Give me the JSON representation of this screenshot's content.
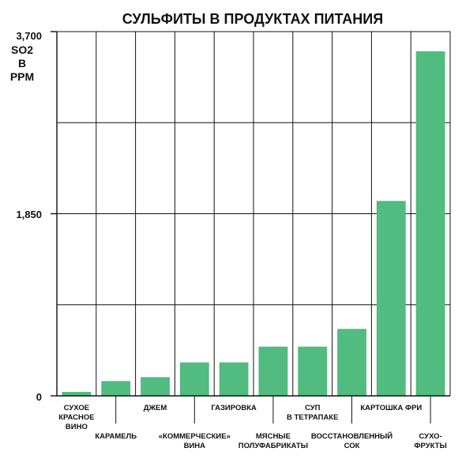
{
  "chart_data": {
    "type": "bar",
    "title": "СУЛЬФИТЫ В ПРОДУКТАХ ПИТАНИЯ",
    "ylabel_lines": [
      "SO2",
      "B",
      "PPM"
    ],
    "ylim": [
      0,
      3700
    ],
    "yticks": [
      "0",
      "1,850",
      "3,700"
    ],
    "grid": true,
    "bar_color": "#52bb80",
    "categories": [
      "СУХОЕ КРАСНОЕ ВИНО",
      "КАРАМЕЛЬ",
      "ДЖЕМ",
      "«КОММЕРЧЕСКИЕ» ВИНА",
      "ГАЗИРОВКА",
      "МЯСНЫЕ ПОЛУФАБРИКАТЫ",
      "СУП В ТЕТРАПАКЕ",
      "ВОССТАНОВЛЕННЫЙ СОК",
      "КАРТОШКА ФРИ",
      "СУХОФРУКТЫ"
    ],
    "category_label_lines": [
      [
        "СУХОЕ",
        "КРАСНОЕ",
        "ВИНО"
      ],
      [
        "КАРАМЕЛЬ"
      ],
      [
        "ДЖЕМ"
      ],
      [
        "«КОММЕРЧЕСКИЕ»",
        "ВИНА"
      ],
      [
        "ГАЗИРОВКА"
      ],
      [
        "МЯСНЫЕ",
        "ПОЛУФАБРИКАТЫ"
      ],
      [
        "СУП",
        "В ТЕТРАПАКЕ"
      ],
      [
        "ВОССТАНОВЛЕННЫЙ",
        "СОК"
      ],
      [
        "КАРТОШКА ФРИ"
      ],
      [
        "СУХО-",
        "ФРУКТЫ"
      ]
    ],
    "values": [
      40,
      150,
      190,
      340,
      340,
      500,
      500,
      680,
      1980,
      3500
    ]
  }
}
